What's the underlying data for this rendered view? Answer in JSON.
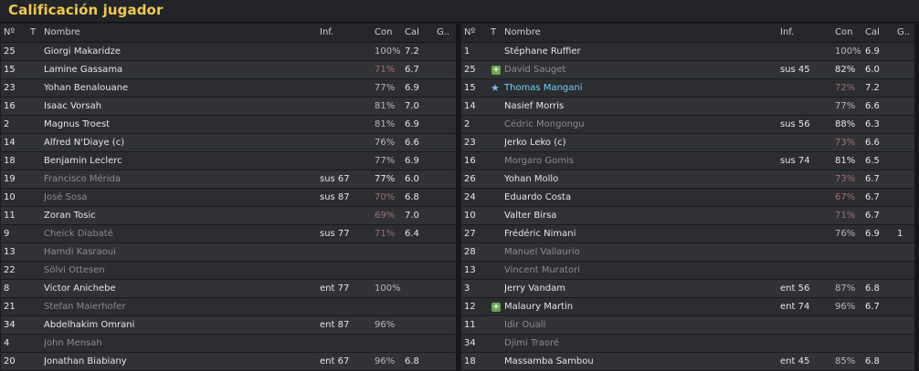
{
  "title": "Calificación jugador",
  "headers": {
    "num": "Nº",
    "t": "T",
    "name": "Nombre",
    "inf": "Inf.",
    "con": "Con",
    "cal": "Cal",
    "g": "G.."
  },
  "left_rows": [
    {
      "num": "25",
      "name": "Giorgi Makaridze",
      "inf": "",
      "con": "100%",
      "cal": "7.2",
      "g": "",
      "style": ""
    },
    {
      "num": "15",
      "name": "Lamine Gassama",
      "inf": "",
      "con": "71%",
      "cal": "6.7",
      "g": "",
      "style": ""
    },
    {
      "num": "23",
      "name": "Yohan Benalouane",
      "inf": "",
      "con": "77%",
      "cal": "6.9",
      "g": "",
      "style": ""
    },
    {
      "num": "16",
      "name": "Isaac Vorsah",
      "inf": "",
      "con": "81%",
      "cal": "7.0",
      "g": "",
      "style": ""
    },
    {
      "num": "2",
      "name": "Magnus Troest",
      "inf": "",
      "con": "81%",
      "cal": "6.9",
      "g": "",
      "style": ""
    },
    {
      "num": "14",
      "name": "Alfred N'Diaye (c)",
      "inf": "",
      "con": "76%",
      "cal": "6.6",
      "g": "",
      "style": ""
    },
    {
      "num": "18",
      "name": "Benjamin Leclerc",
      "inf": "",
      "con": "77%",
      "cal": "6.9",
      "g": "",
      "style": ""
    },
    {
      "num": "19",
      "name": "Francisco Mérida",
      "inf": "sus 67",
      "con": "77%",
      "cal": "6.0",
      "g": "",
      "style": "sub"
    },
    {
      "num": "10",
      "name": "José Sosa",
      "inf": "sus 87",
      "con": "70%",
      "cal": "6.8",
      "g": "",
      "style": "sub"
    },
    {
      "num": "11",
      "name": "Zoran Tosic",
      "inf": "",
      "con": "69%",
      "cal": "7.0",
      "g": "",
      "style": ""
    },
    {
      "num": "9",
      "name": "Cheick Diabaté",
      "inf": "sus 77",
      "con": "71%",
      "cal": "6.4",
      "g": "",
      "style": "sub"
    },
    {
      "num": "13",
      "name": "Hamdi Kasraoui",
      "inf": "",
      "con": "",
      "cal": "",
      "g": "",
      "style": "sub"
    },
    {
      "num": "22",
      "name": "Sölvi Ottesen",
      "inf": "",
      "con": "",
      "cal": "",
      "g": "",
      "style": "sub"
    },
    {
      "num": "8",
      "name": "Victor Anichebe",
      "inf": "ent 77",
      "con": "100%",
      "cal": "",
      "g": "",
      "style": ""
    },
    {
      "num": "21",
      "name": "Stefan Maierhofer",
      "inf": "",
      "con": "",
      "cal": "",
      "g": "",
      "style": "sub"
    },
    {
      "num": "34",
      "name": "Abdelhakim Omrani",
      "inf": "ent 87",
      "con": "96%",
      "cal": "",
      "g": "",
      "style": ""
    },
    {
      "num": "4",
      "name": "John Mensah",
      "inf": "",
      "con": "",
      "cal": "",
      "g": "",
      "style": "sub"
    },
    {
      "num": "20",
      "name": "Jonathan Biabiany",
      "inf": "ent 67",
      "con": "96%",
      "cal": "6.8",
      "g": "",
      "style": ""
    }
  ],
  "right_rows": [
    {
      "num": "1",
      "icon": "",
      "name": "Stéphane Ruffier",
      "inf": "",
      "con": "100%",
      "cal": "6.9",
      "g": "",
      "style": ""
    },
    {
      "num": "25",
      "icon": "plus",
      "name": "David Sauget",
      "inf": "sus 45",
      "con": "82%",
      "cal": "6.0",
      "g": "",
      "style": "sub"
    },
    {
      "num": "15",
      "icon": "star",
      "name": "Thomas Mangani",
      "inf": "",
      "con": "72%",
      "cal": "7.2",
      "g": "",
      "style": "star"
    },
    {
      "num": "14",
      "icon": "",
      "name": "Nasief Morris",
      "inf": "",
      "con": "77%",
      "cal": "6.6",
      "g": "",
      "style": ""
    },
    {
      "num": "2",
      "icon": "",
      "name": "Cédric Mongongu",
      "inf": "sus 56",
      "con": "88%",
      "cal": "6.3",
      "g": "",
      "style": "sub"
    },
    {
      "num": "23",
      "icon": "",
      "name": "Jerko Leko (c)",
      "inf": "",
      "con": "73%",
      "cal": "6.6",
      "g": "",
      "style": ""
    },
    {
      "num": "16",
      "icon": "",
      "name": "Morgaro Gomis",
      "inf": "sus 74",
      "con": "81%",
      "cal": "6.5",
      "g": "",
      "style": "sub"
    },
    {
      "num": "26",
      "icon": "",
      "name": "Yohan Mollo",
      "inf": "",
      "con": "73%",
      "cal": "6.7",
      "g": "",
      "style": ""
    },
    {
      "num": "24",
      "icon": "",
      "name": "Eduardo Costa",
      "inf": "",
      "con": "67%",
      "cal": "6.7",
      "g": "",
      "style": ""
    },
    {
      "num": "10",
      "icon": "",
      "name": "Valter Birsa",
      "inf": "",
      "con": "71%",
      "cal": "6.7",
      "g": "",
      "style": ""
    },
    {
      "num": "27",
      "icon": "",
      "name": "Frédéric Nimani",
      "inf": "",
      "con": "76%",
      "cal": "6.9",
      "g": "1",
      "style": ""
    },
    {
      "num": "28",
      "icon": "",
      "name": "Manuel Vallaurio",
      "inf": "",
      "con": "",
      "cal": "",
      "g": "",
      "style": "sub"
    },
    {
      "num": "13",
      "icon": "",
      "name": "Vincent Muratori",
      "inf": "",
      "con": "",
      "cal": "",
      "g": "",
      "style": "sub"
    },
    {
      "num": "3",
      "icon": "",
      "name": "Jerry Vandam",
      "inf": "ent 56",
      "con": "87%",
      "cal": "6.8",
      "g": "",
      "style": ""
    },
    {
      "num": "12",
      "icon": "plus",
      "name": "Malaury Martin",
      "inf": "ent 74",
      "con": "96%",
      "cal": "6.7",
      "g": "",
      "style": ""
    },
    {
      "num": "11",
      "icon": "",
      "name": "Idir Ouali",
      "inf": "",
      "con": "",
      "cal": "",
      "g": "",
      "style": "sub"
    },
    {
      "num": "34",
      "icon": "",
      "name": "Djimi Traoré",
      "inf": "",
      "con": "",
      "cal": "",
      "g": "",
      "style": "sub"
    },
    {
      "num": "18",
      "icon": "",
      "name": "Massamba Sambou",
      "inf": "ent 45",
      "con": "85%",
      "cal": "6.8",
      "g": "",
      "style": ""
    }
  ],
  "colors": {
    "title": "#f2c94c",
    "low_condition": "#a07070",
    "normal_condition": "#b9b9b9",
    "highlight": "#6fd0f5"
  }
}
